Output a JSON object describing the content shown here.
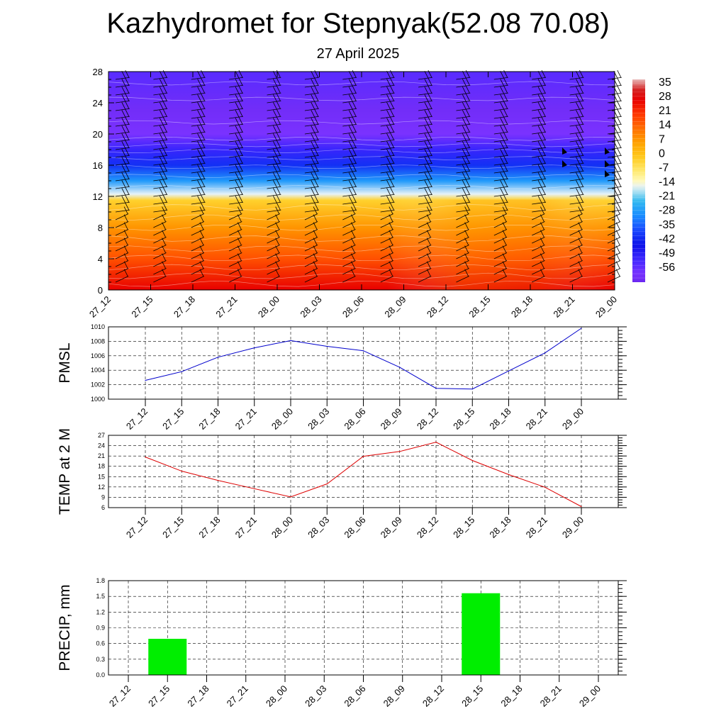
{
  "title": "Kazhydromet for Stepnyak(52.08 70.08)",
  "subtitle": "27 April 2025",
  "time_labels": [
    "27_12",
    "27_15",
    "27_18",
    "27_21",
    "28_00",
    "28_03",
    "28_06",
    "28_09",
    "28_12",
    "28_15",
    "28_18",
    "28_21",
    "29_00"
  ],
  "chart_data": [
    {
      "type": "heatmap",
      "title": "",
      "xlabel": "",
      "ylabel": "",
      "x": [
        "27_12",
        "27_15",
        "27_18",
        "27_21",
        "28_00",
        "28_03",
        "28_06",
        "28_09",
        "28_12",
        "28_15",
        "28_18",
        "28_21",
        "29_00"
      ],
      "y_ticks": [
        0,
        4,
        8,
        12,
        16,
        20,
        24,
        28
      ],
      "ylim": [
        0,
        28
      ],
      "colorbar_labels": [
        "35",
        "28",
        "21",
        "14",
        "7",
        "0",
        "-7",
        "-14",
        "-21",
        "-28",
        "-35",
        "-42",
        "-49",
        "-56"
      ],
      "colorbar_range": [
        -60,
        38
      ],
      "temperature_profile": [
        {
          "level": 0,
          "value": 28
        },
        {
          "level": 4,
          "value": 18
        },
        {
          "level": 8,
          "value": 9
        },
        {
          "level": 11.5,
          "value": -1
        },
        {
          "level": 12.3,
          "value": -14
        },
        {
          "level": 14,
          "value": -26
        },
        {
          "level": 16,
          "value": -38
        },
        {
          "level": 18,
          "value": -48
        },
        {
          "level": 20,
          "value": -56
        },
        {
          "level": 23,
          "value": -58
        },
        {
          "level": 28,
          "value": -52
        }
      ],
      "wind_barbs": true,
      "colors": {
        "warm": "#e00000",
        "zero": "#ffd030",
        "cold": "#7a30ff"
      }
    },
    {
      "type": "line",
      "title": "",
      "xlabel": "",
      "ylabel": "PMSL",
      "categories": [
        "27_12",
        "27_15",
        "27_18",
        "27_21",
        "28_00",
        "28_03",
        "28_06",
        "28_09",
        "28_12",
        "28_15",
        "28_18",
        "28_21",
        "29_00"
      ],
      "values": [
        1002.6,
        1003.8,
        1005.8,
        1007.1,
        1008.1,
        1007.3,
        1006.7,
        1004.4,
        1001.5,
        1001.4,
        1003.9,
        1006.4,
        1009.8
      ],
      "ylim": [
        1000,
        1010
      ],
      "y_ticks": [
        1000,
        1002,
        1004,
        1006,
        1008,
        1010
      ],
      "color": "#0000cc",
      "grid": true
    },
    {
      "type": "line",
      "title": "",
      "xlabel": "",
      "ylabel": "TEMP at 2 M",
      "categories": [
        "27_12",
        "27_15",
        "27_18",
        "27_21",
        "28_00",
        "28_03",
        "28_06",
        "28_09",
        "28_12",
        "28_15",
        "28_18",
        "28_21",
        "29_00"
      ],
      "values": [
        20.7,
        16.6,
        13.9,
        11.5,
        9.1,
        12.9,
        20.9,
        22.3,
        25.0,
        19.7,
        15.6,
        11.9,
        6.3
      ],
      "ylim": [
        6,
        27
      ],
      "y_ticks": [
        6,
        9,
        12,
        15,
        18,
        21,
        24,
        27
      ],
      "color": "#dd0000",
      "grid": true
    },
    {
      "type": "bar",
      "title": "",
      "xlabel": "",
      "ylabel": "PRECIP, mm",
      "categories": [
        "27_12",
        "27_15",
        "27_18",
        "27_21",
        "28_00",
        "28_03",
        "28_06",
        "28_09",
        "28_12",
        "28_15",
        "28_18",
        "28_21",
        "29_00"
      ],
      "values": [
        0,
        0.69,
        0,
        0,
        0,
        0,
        0,
        0,
        0,
        1.56,
        0,
        0,
        0
      ],
      "ylim": [
        0,
        1.8
      ],
      "y_ticks": [
        "0.0",
        "0.3",
        "0.6",
        "0.9",
        "1.2",
        "1.5",
        "1.8"
      ],
      "color": "#00ee00",
      "grid": true
    }
  ]
}
